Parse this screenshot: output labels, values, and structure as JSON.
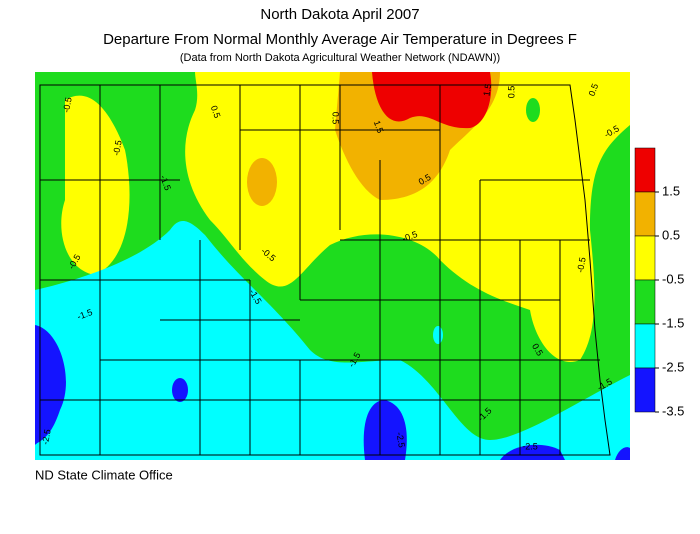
{
  "title": "North Dakota April 2007",
  "subtitle": "Departure From Normal Monthly Average Air Temperature in Degrees F",
  "source_note": "(Data from North Dakota Agricultural Weather Network (NDAWN))",
  "footer": "ND State Climate Office",
  "legend": {
    "colors": [
      "#ee0000",
      "#f2b200",
      "#ffff00",
      "#1edc1e",
      "#00ffff",
      "#1414ff"
    ],
    "labels": [
      1.5,
      0.5,
      -0.5,
      -1.5,
      -2.5,
      -3.5
    ]
  },
  "contour_labels": [
    -0.5,
    -0.5,
    -0.5,
    -1.5,
    -1.5,
    -1.5,
    0.5,
    0.5,
    1.5,
    1.5,
    0.5,
    0.5,
    -0.5,
    0.5,
    -0.5,
    -0.5,
    -0.5,
    0.5,
    -1.5,
    -1.5,
    -1.5,
    -2.5,
    -2.5,
    -2.5
  ]
}
